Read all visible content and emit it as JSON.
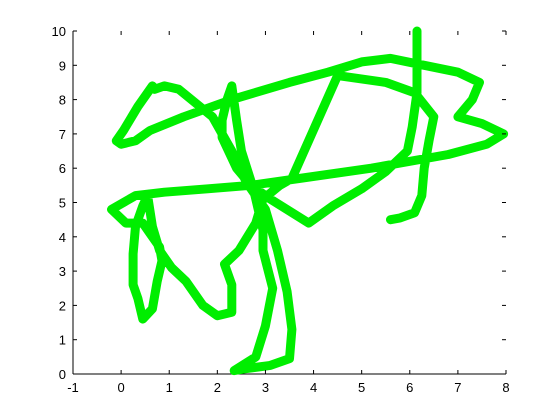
{
  "chart_data": {
    "type": "line",
    "title": "",
    "xlabel": "",
    "ylabel": "",
    "xlim": [
      -1,
      8
    ],
    "ylim": [
      0,
      10
    ],
    "grid": false,
    "x_ticks": [
      "-1",
      "0",
      "1",
      "2",
      "3",
      "4",
      "5",
      "6",
      "7",
      "8"
    ],
    "y_ticks": [
      "0",
      "1",
      "2",
      "3",
      "4",
      "5",
      "6",
      "7",
      "8",
      "9",
      "10"
    ],
    "series": [
      {
        "color": "#00ee00",
        "points": [
          [
            6.15,
            10.0
          ],
          [
            6.15,
            8.2
          ],
          [
            6.05,
            7.2
          ],
          [
            5.95,
            6.5
          ],
          [
            5.5,
            5.9
          ],
          [
            5.0,
            5.4
          ],
          [
            4.4,
            4.9
          ],
          [
            3.9,
            4.4
          ],
          [
            3.5,
            4.75
          ],
          [
            3.1,
            5.1
          ],
          [
            2.7,
            5.5
          ],
          [
            2.4,
            6.0
          ],
          [
            2.1,
            6.9
          ],
          [
            2.1,
            7.4
          ],
          [
            2.2,
            8.0
          ],
          [
            2.3,
            8.4
          ],
          [
            2.4,
            7.4
          ],
          [
            2.5,
            6.5
          ],
          [
            2.75,
            5.4
          ],
          [
            2.95,
            4.2
          ],
          [
            2.95,
            3.6
          ],
          [
            3.15,
            2.5
          ],
          [
            3.0,
            1.4
          ],
          [
            2.8,
            0.5
          ],
          [
            2.35,
            0.1
          ],
          [
            2.55,
            0.15
          ],
          [
            3.1,
            0.25
          ],
          [
            3.5,
            0.45
          ],
          [
            3.55,
            1.3
          ],
          [
            3.45,
            2.4
          ],
          [
            3.25,
            3.6
          ],
          [
            3.0,
            4.8
          ],
          [
            2.6,
            5.6
          ],
          [
            2.3,
            6.5
          ],
          [
            1.9,
            7.5
          ],
          [
            1.2,
            8.3
          ],
          [
            0.9,
            8.4
          ],
          [
            0.7,
            8.3
          ],
          [
            0.65,
            8.4
          ],
          [
            0.35,
            7.8
          ],
          [
            0.05,
            7.1
          ],
          [
            -0.1,
            6.8
          ],
          [
            0.0,
            6.7
          ],
          [
            0.3,
            6.8
          ],
          [
            0.6,
            7.1
          ],
          [
            1.3,
            7.5
          ],
          [
            2.3,
            8.0
          ],
          [
            3.5,
            8.5
          ],
          [
            4.3,
            8.8
          ],
          [
            5.0,
            9.1
          ],
          [
            5.6,
            9.2
          ],
          [
            6.3,
            9.0
          ],
          [
            7.0,
            8.8
          ],
          [
            7.45,
            8.5
          ],
          [
            7.3,
            8.0
          ],
          [
            7.0,
            7.5
          ],
          [
            7.5,
            7.3
          ],
          [
            7.95,
            7.0
          ],
          [
            7.6,
            6.7
          ],
          [
            6.8,
            6.4
          ],
          [
            5.2,
            6.0
          ],
          [
            3.7,
            5.7
          ],
          [
            2.7,
            5.5
          ],
          [
            1.8,
            5.4
          ],
          [
            0.9,
            5.3
          ],
          [
            0.3,
            5.2
          ],
          [
            -0.2,
            4.8
          ],
          [
            0.1,
            4.4
          ],
          [
            0.45,
            4.4
          ],
          [
            0.6,
            4.1
          ],
          [
            0.8,
            3.7
          ],
          [
            0.85,
            3.3
          ],
          [
            0.75,
            2.7
          ],
          [
            0.65,
            1.9
          ],
          [
            0.45,
            1.6
          ],
          [
            0.35,
            2.2
          ],
          [
            0.25,
            2.6
          ],
          [
            0.25,
            3.5
          ],
          [
            0.3,
            4.3
          ],
          [
            0.45,
            4.9
          ],
          [
            0.55,
            5.2
          ],
          [
            0.65,
            4.3
          ],
          [
            0.8,
            3.6
          ],
          [
            1.05,
            3.1
          ],
          [
            1.35,
            2.7
          ],
          [
            1.7,
            2.0
          ],
          [
            2.0,
            1.7
          ],
          [
            2.3,
            1.8
          ],
          [
            2.3,
            2.6
          ],
          [
            2.15,
            3.2
          ],
          [
            2.45,
            3.6
          ],
          [
            2.8,
            4.4
          ],
          [
            2.95,
            5.1
          ],
          [
            3.3,
            5.5
          ],
          [
            3.55,
            5.7
          ],
          [
            4.5,
            8.7
          ],
          [
            5.5,
            8.5
          ],
          [
            6.1,
            8.2
          ],
          [
            6.5,
            7.5
          ],
          [
            6.4,
            6.8
          ],
          [
            6.3,
            6.0
          ],
          [
            6.25,
            5.2
          ],
          [
            6.1,
            4.7
          ],
          [
            5.8,
            4.55
          ],
          [
            5.6,
            4.5
          ]
        ]
      }
    ]
  }
}
